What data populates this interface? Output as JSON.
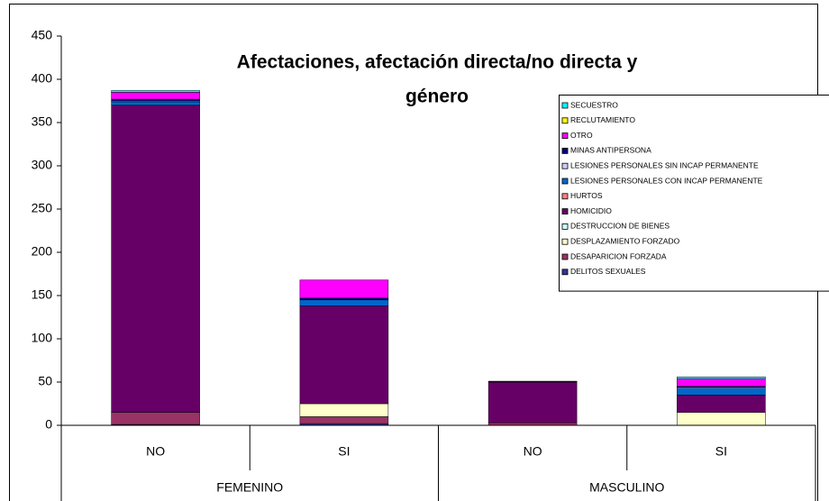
{
  "chart_data": {
    "type": "stacked-bar",
    "title": [
      "Afectaciones, afectación directa/no directa y",
      "género"
    ],
    "categories": [
      "NO",
      "SI",
      "NO",
      "SI"
    ],
    "groups": [
      {
        "name": "FEMENINO",
        "count": 2
      },
      {
        "name": "MASCULINO",
        "count": 2
      }
    ],
    "ylim": [
      0,
      450
    ],
    "yticks": [
      0,
      50,
      100,
      150,
      200,
      250,
      300,
      350,
      400,
      450
    ],
    "legend": "right",
    "series": [
      {
        "name": "SECUESTRO",
        "color": "#00ffff",
        "values": [
          2,
          0,
          0,
          2
        ]
      },
      {
        "name": "RECLUTAMIENTO",
        "color": "#ffff00",
        "values": [
          0,
          0,
          0,
          0
        ]
      },
      {
        "name": "OTRO",
        "color": "#ff00ff",
        "values": [
          8,
          21,
          0,
          9
        ]
      },
      {
        "name": "MINAS ANTIPERSONA",
        "color": "#000080",
        "values": [
          2,
          2,
          1,
          1
        ]
      },
      {
        "name": "LESIONES PERSONALES SIN INCAP PERMANENTE",
        "color": "#ccccff",
        "values": [
          1,
          0,
          0,
          1
        ]
      },
      {
        "name": "LESIONES PERSONALES CON INCAP PERMANENTE",
        "color": "#0066cc",
        "values": [
          4,
          7,
          0,
          8
        ]
      },
      {
        "name": "HURTOS",
        "color": "#ff8080",
        "values": [
          0,
          0,
          0,
          0
        ]
      },
      {
        "name": "HOMICIDIO",
        "color": "#660066",
        "values": [
          355,
          113,
          47,
          20
        ]
      },
      {
        "name": "DESTRUCCION DE BIENES",
        "color": "#ccffff",
        "values": [
          0,
          0,
          0,
          0
        ]
      },
      {
        "name": "DESPLAZAMIENTO FORZADO",
        "color": "#ffffcc",
        "values": [
          0,
          15,
          0,
          15
        ]
      },
      {
        "name": "DESAPARICION FORZADA",
        "color": "#993366",
        "values": [
          14,
          8,
          3,
          0
        ]
      },
      {
        "name": "DELITOS SEXUALES",
        "color": "#333399",
        "values": [
          1,
          2,
          0,
          0
        ]
      }
    ]
  }
}
